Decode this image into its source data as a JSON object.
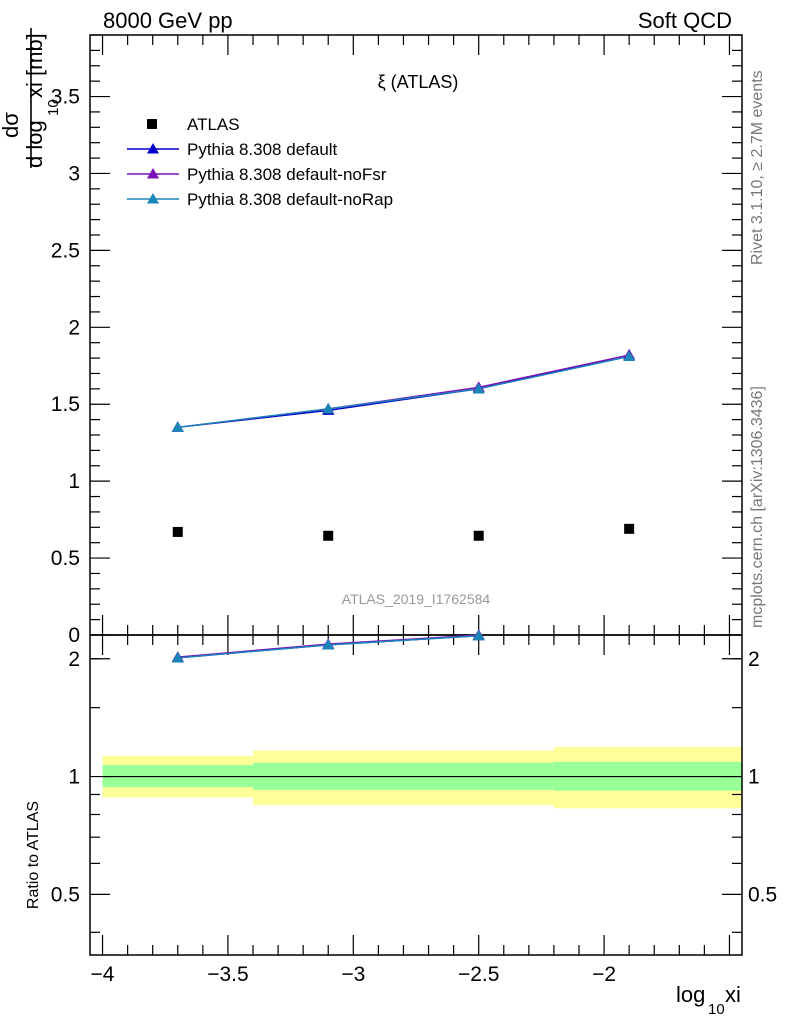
{
  "header": {
    "left": "8000 GeV pp",
    "right": "Soft QCD"
  },
  "side_labels": {
    "rivet": "Rivet 3.1.10, ≥ 2.7M events",
    "mcplots": "mcplots.cern.ch [arXiv:1306.3436]"
  },
  "chart_data": {
    "type": "line",
    "title": "ξ (ATLAS)",
    "watermark": "ATLAS_2019_I1762584",
    "xlabel": "log10 xi",
    "ylabel": "dσ / d log10 xi [mb]",
    "ratio_ylabel": "Ratio to ATLAS",
    "xlim": [
      -4.05,
      -1.45
    ],
    "ylim": [
      0,
      3.9
    ],
    "ratio_ylim": [
      0.35,
      2.3
    ],
    "ratio_scale": "log",
    "x_ticks": [
      -4,
      -3.5,
      -3,
      -2.5,
      -2
    ],
    "x_tick_labels": [
      "−4",
      "−3.5",
      "−3",
      "−2.5",
      "−2"
    ],
    "y_ticks": [
      0,
      0.5,
      1,
      1.5,
      2,
      2.5,
      3,
      3.5
    ],
    "y_tick_labels": [
      "0",
      "0.5",
      "1",
      "1.5",
      "2",
      "2.5",
      "3",
      "3.5"
    ],
    "ratio_ticks": [
      0.5,
      1,
      2
    ],
    "ratio_tick_labels": [
      "0.5",
      "1",
      "2"
    ],
    "legend_position": "top-left",
    "data_series": {
      "name": "ATLAS",
      "x": [
        -3.7,
        -3.1,
        -2.5,
        -1.9
      ],
      "y": [
        0.67,
        0.645,
        0.645,
        0.69
      ],
      "bins": [
        [
          -4.0,
          -3.4
        ],
        [
          -3.4,
          -2.6
        ],
        [
          -2.6,
          -2.2
        ],
        [
          -2.2,
          -1.45
        ]
      ]
    },
    "series": [
      {
        "name": "Pythia 8.308 default",
        "color": "#0000cc",
        "x": [
          -3.7,
          -3.1,
          -2.5,
          -1.9
        ],
        "y": [
          1.35,
          1.46,
          1.6,
          1.82
        ]
      },
      {
        "name": "Pythia 8.308 default-noFsr",
        "color": "#7a10b8",
        "x": [
          -3.7,
          -3.1,
          -2.5,
          -1.9
        ],
        "y": [
          1.35,
          1.47,
          1.61,
          1.82
        ]
      },
      {
        "name": "Pythia 8.308 default-noRap",
        "color": "#1a86b8",
        "x": [
          -3.7,
          -3.1,
          -2.5,
          -1.9
        ],
        "y": [
          1.35,
          1.47,
          1.6,
          1.81
        ]
      }
    ],
    "ratio_series": [
      {
        "name": "Pythia 8.308 default",
        "x": [
          -3.7,
          -3.1,
          -2.5
        ],
        "y": [
          2.01,
          2.17,
          2.29
        ]
      },
      {
        "name": "Pythia 8.308 default-noFsr",
        "x": [
          -3.7,
          -3.1,
          -2.5
        ],
        "y": [
          2.02,
          2.18,
          2.3
        ]
      },
      {
        "name": "Pythia 8.308 default-noRap",
        "x": [
          -3.7,
          -3.1,
          -2.5
        ],
        "y": [
          2.01,
          2.17,
          2.29
        ]
      }
    ],
    "ratio_bands": [
      {
        "x": [
          -4.0,
          -3.4
        ],
        "stat": [
          0.94,
          1.07
        ],
        "total": [
          0.885,
          1.13
        ]
      },
      {
        "x": [
          -3.4,
          -2.2
        ],
        "stat": [
          0.925,
          1.085
        ],
        "total": [
          0.845,
          1.165
        ]
      },
      {
        "x": [
          -2.2,
          -1.45
        ],
        "stat": [
          0.92,
          1.09
        ],
        "total": [
          0.83,
          1.19
        ]
      }
    ],
    "band_colors": {
      "stat": "#99ff99",
      "total": "#ffff99"
    }
  }
}
